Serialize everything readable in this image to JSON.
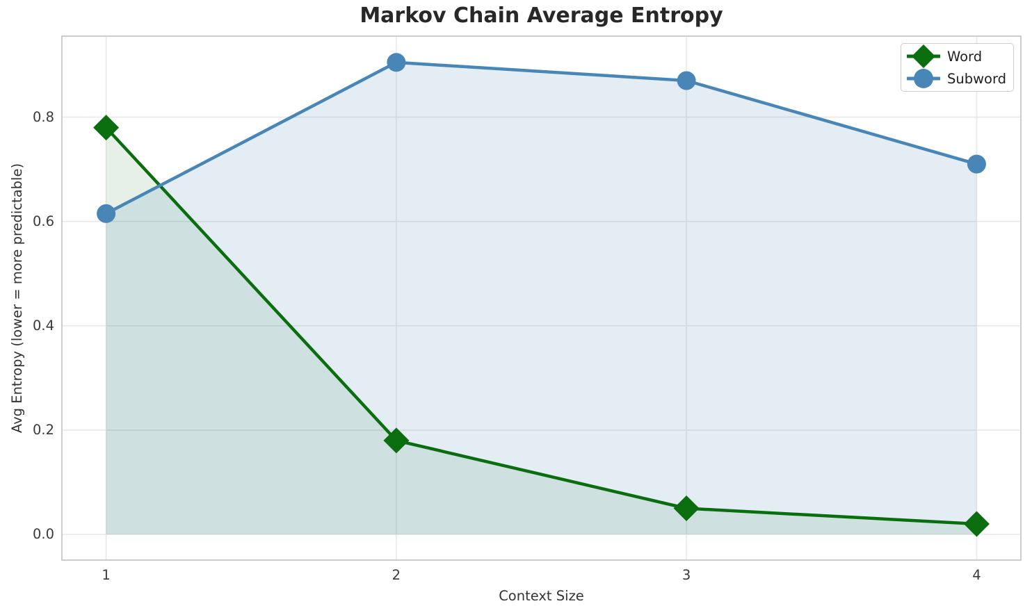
{
  "chart_data": {
    "type": "line",
    "title": "Markov Chain Average Entropy",
    "xlabel": "Context Size",
    "ylabel": "Avg Entropy (lower = more predictable)",
    "x": [
      1,
      2,
      3,
      4
    ],
    "series": [
      {
        "name": "Word",
        "values": [
          0.78,
          0.18,
          0.05,
          0.02
        ],
        "color": "#0a6e0f",
        "fill_color": "rgba(10,110,15,0.10)",
        "marker": "diamond"
      },
      {
        "name": "Subword",
        "values": [
          0.615,
          0.905,
          0.87,
          0.71
        ],
        "color": "#4986b8",
        "fill_color": "rgba(73,134,184,0.15)",
        "marker": "circle"
      }
    ],
    "fills_to_zero": true,
    "xlim": [
      0.85,
      4.15
    ],
    "ylim": [
      -0.048,
      0.954
    ],
    "xticks": [
      1,
      2,
      3,
      4
    ],
    "xtick_labels": [
      "1",
      "2",
      "3",
      "4"
    ],
    "yticks": [
      0.0,
      0.2,
      0.4,
      0.6,
      0.8
    ],
    "ytick_labels": [
      "0.0",
      "0.2",
      "0.4",
      "0.6",
      "0.8"
    ],
    "grid": true,
    "legend_position": "upper right"
  },
  "legend": {
    "entries": [
      "Word",
      "Subword"
    ]
  }
}
